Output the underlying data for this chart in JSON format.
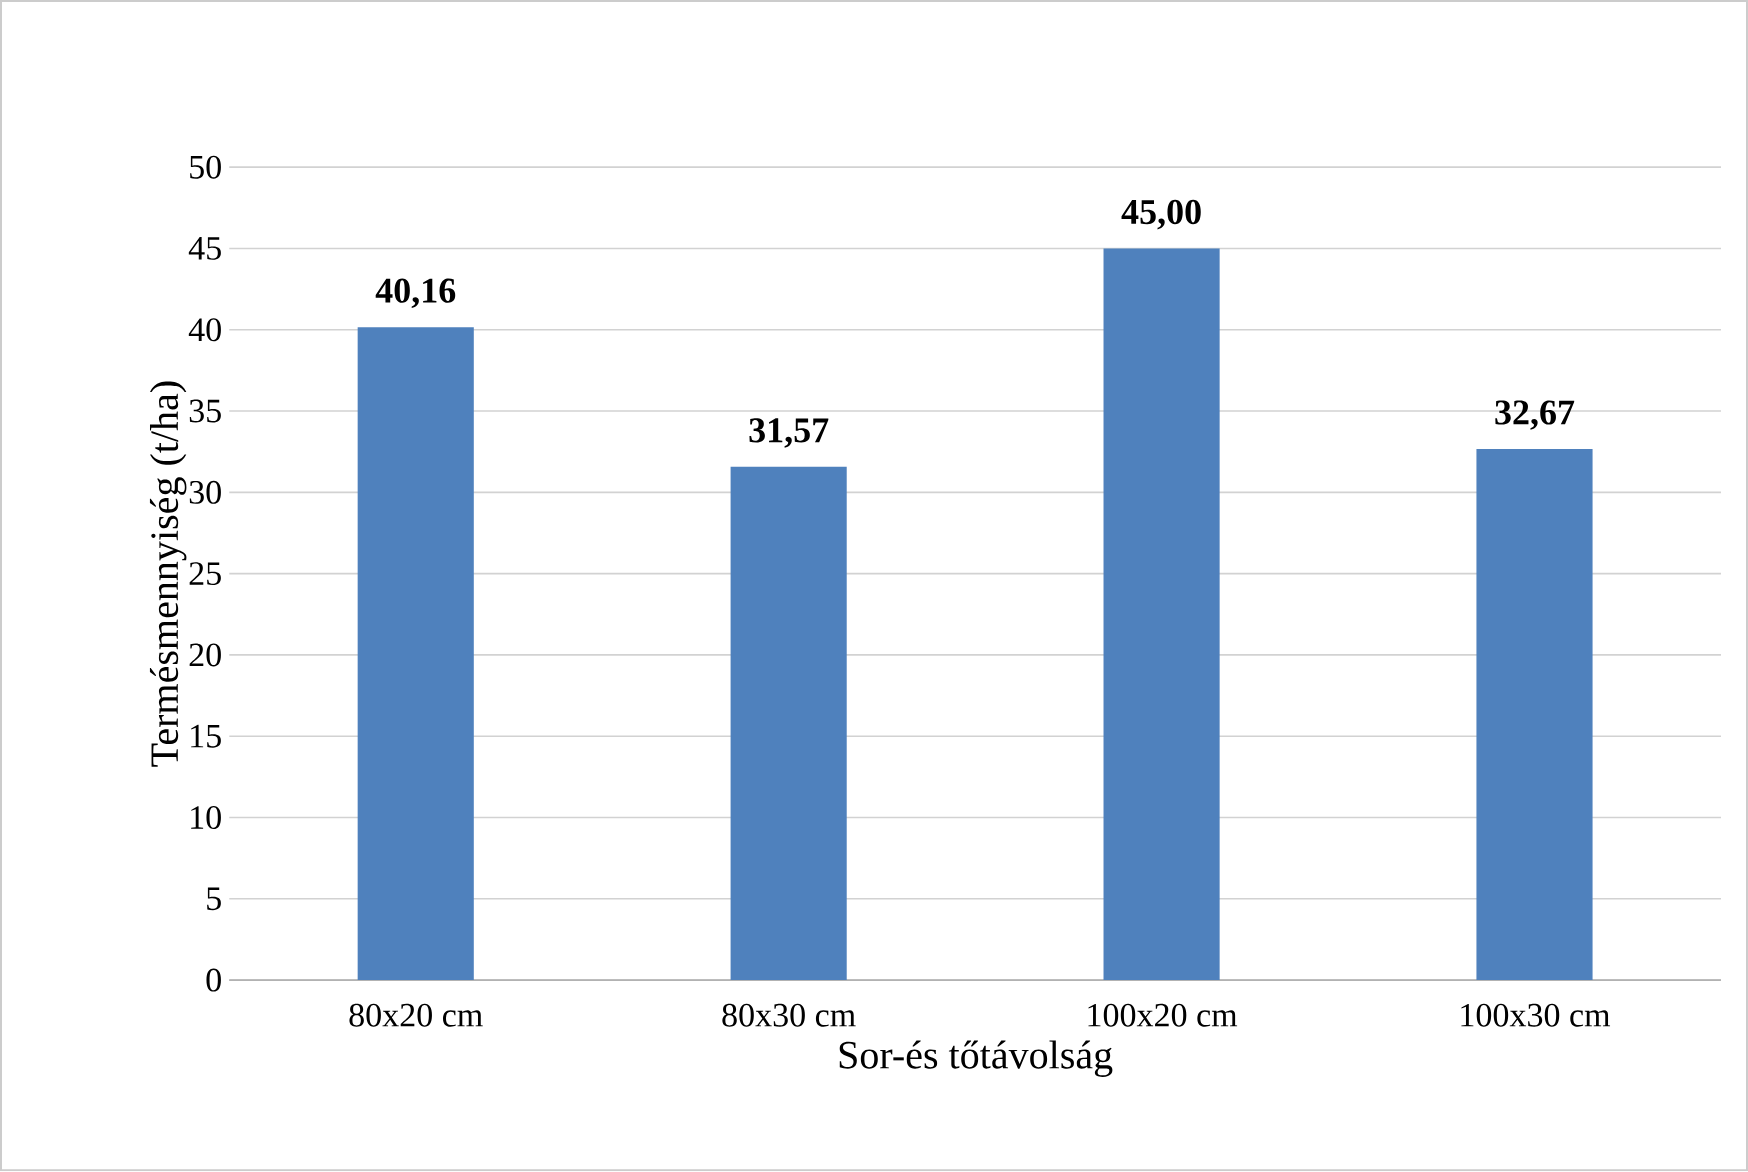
{
  "chart_data": {
    "type": "bar",
    "xlabel": "Sor-és tőtávolság",
    "ylabel": "Termésmennyiség (t/ha)",
    "categories": [
      "80x20 cm",
      "80x30 cm",
      "100x20 cm",
      "100x30 cm"
    ],
    "values": [
      40.16,
      31.57,
      45.0,
      32.67
    ],
    "value_labels": [
      "40,16",
      "31,57",
      "45,00",
      "32,67"
    ],
    "color": "#4f81bd",
    "ylim": [
      0,
      50
    ],
    "yticks": [
      0,
      5,
      10,
      15,
      20,
      25,
      30,
      35,
      40,
      45,
      50
    ],
    "grid": "y"
  }
}
